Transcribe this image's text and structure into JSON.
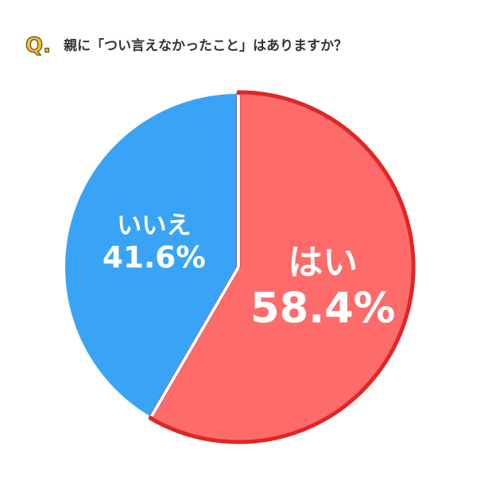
{
  "chart_data": {
    "type": "pie",
    "title_marker": "Q.",
    "title": "親に「つい言えなかったこと」はありますか？",
    "categories": [
      "はい",
      "いいえ"
    ],
    "values": [
      58.4,
      41.6
    ],
    "value_labels": [
      "58.4%",
      "41.6%"
    ],
    "colors": [
      "#fd6b6b",
      "#39a4f6"
    ],
    "edgecolors": [
      "#e02626",
      "#ffffff"
    ]
  }
}
